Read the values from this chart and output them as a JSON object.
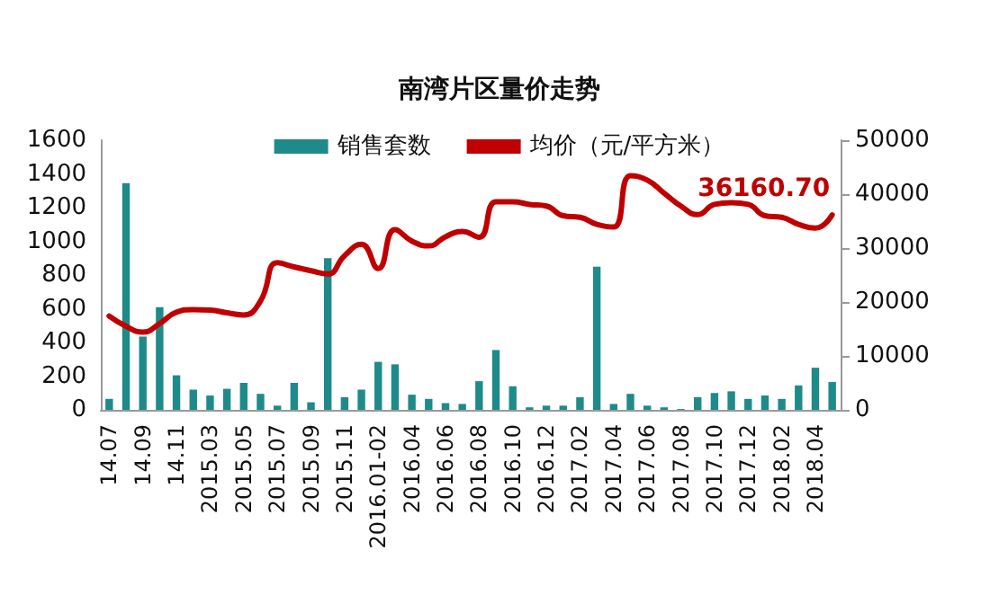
{
  "chart_data": {
    "type": "bar",
    "title": "南湾片区量价走势",
    "categories": [
      "14.07",
      null,
      "14.09",
      null,
      "14.11",
      null,
      "2015.03",
      null,
      "2015.05",
      null,
      "2015.07",
      null,
      "2015.09",
      null,
      "2015.11",
      null,
      "2016.01-02",
      null,
      "2016.04",
      null,
      "2016.06",
      null,
      "2016.08",
      null,
      "2016.10",
      null,
      "2016.12",
      null,
      "2017.02",
      null,
      "2017.04",
      null,
      "2017.06",
      null,
      "2017.08",
      null,
      "2017.10",
      null,
      "2017.12",
      null,
      "2018.02",
      null,
      "2018.04",
      null
    ],
    "series": [
      {
        "name": "销售套数",
        "color": "#1f8a8a",
        "values": [
          65,
          1345,
          435,
          610,
          205,
          120,
          85,
          125,
          160,
          95,
          25,
          160,
          45,
          900,
          75,
          120,
          285,
          270,
          90,
          65,
          40,
          35,
          170,
          355,
          140,
          15,
          25,
          25,
          75,
          850,
          35,
          95,
          25,
          15,
          5,
          75,
          100,
          110,
          65,
          85,
          65,
          145,
          250,
          165
        ]
      },
      {
        "name": "均价（元/平方米）",
        "type": "line",
        "axis": "y2",
        "color": "#c00000",
        "values": [
          17400,
          15500,
          14400,
          16000,
          18100,
          18600,
          18500,
          18000,
          17600,
          20200,
          27300,
          26500,
          25800,
          25200,
          28600,
          30700,
          26200,
          33400,
          31300,
          30400,
          32100,
          33100,
          32000,
          38600,
          38600,
          38100,
          37800,
          36000,
          35700,
          34400,
          33900,
          43400,
          42600,
          40200,
          37800,
          36200,
          38100,
          38400,
          38100,
          36000,
          35700,
          34400,
          33700,
          36160.7
        ],
        "value_labels": [
          null,
          null,
          null,
          null,
          null,
          null,
          null,
          null,
          null,
          null,
          null,
          null,
          null,
          null,
          null,
          null,
          null,
          null,
          null,
          null,
          null,
          null,
          null,
          null,
          null,
          null,
          null,
          null,
          null,
          null,
          null,
          null,
          null,
          null,
          null,
          null,
          null,
          null,
          null,
          null,
          null,
          null,
          null,
          "36160.70"
        ]
      }
    ],
    "ylim": [
      0,
      1600
    ],
    "yticks": [
      0,
      200,
      400,
      600,
      800,
      1000,
      1200,
      1400,
      1600
    ],
    "y2lim": [
      0,
      50000
    ],
    "y2ticks": [
      0,
      10000,
      20000,
      30000,
      40000,
      50000
    ],
    "legend": "top",
    "grid": false,
    "line_style": "solid"
  }
}
